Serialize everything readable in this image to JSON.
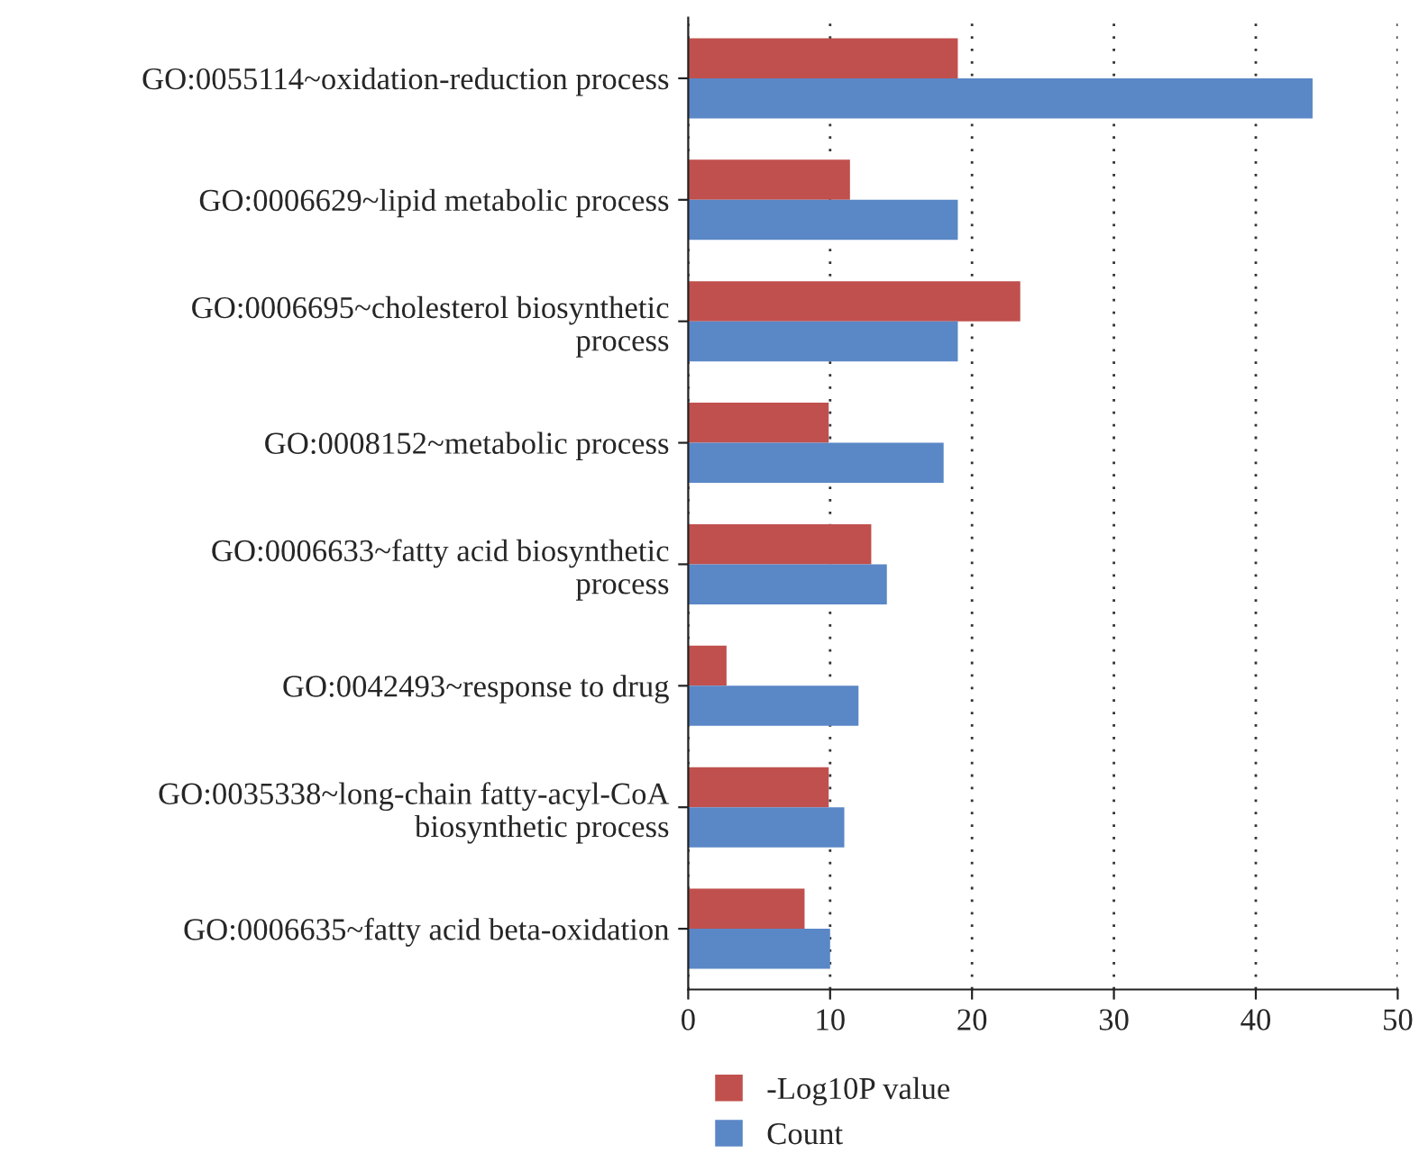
{
  "chart_data": {
    "type": "bar",
    "orientation": "horizontal",
    "categories": [
      "GO:0055114~oxidation-reduction process",
      "GO:0006629~lipid metabolic process",
      "GO:0006695~cholesterol biosynthetic\nprocess",
      "GO:0008152~metabolic process",
      "GO:0006633~fatty acid biosynthetic\nprocess",
      "GO:0042493~response to drug",
      "GO:0035338~long-chain fatty-acyl-CoA\nbiosynthetic process",
      "GO:0006635~fatty acid beta-oxidation"
    ],
    "series": [
      {
        "name": "-Log10P value",
        "color": "#c0504d",
        "values": [
          19.0,
          11.4,
          23.4,
          9.9,
          12.9,
          2.7,
          9.9,
          8.2
        ]
      },
      {
        "name": "Count",
        "color": "#5a87c6",
        "values": [
          44,
          19,
          19,
          18,
          14,
          12,
          11,
          10
        ]
      }
    ],
    "xlim": [
      0,
      50
    ],
    "xticks": [
      0,
      10,
      20,
      30,
      40,
      50
    ],
    "grid": "x",
    "legend": "bottom"
  }
}
